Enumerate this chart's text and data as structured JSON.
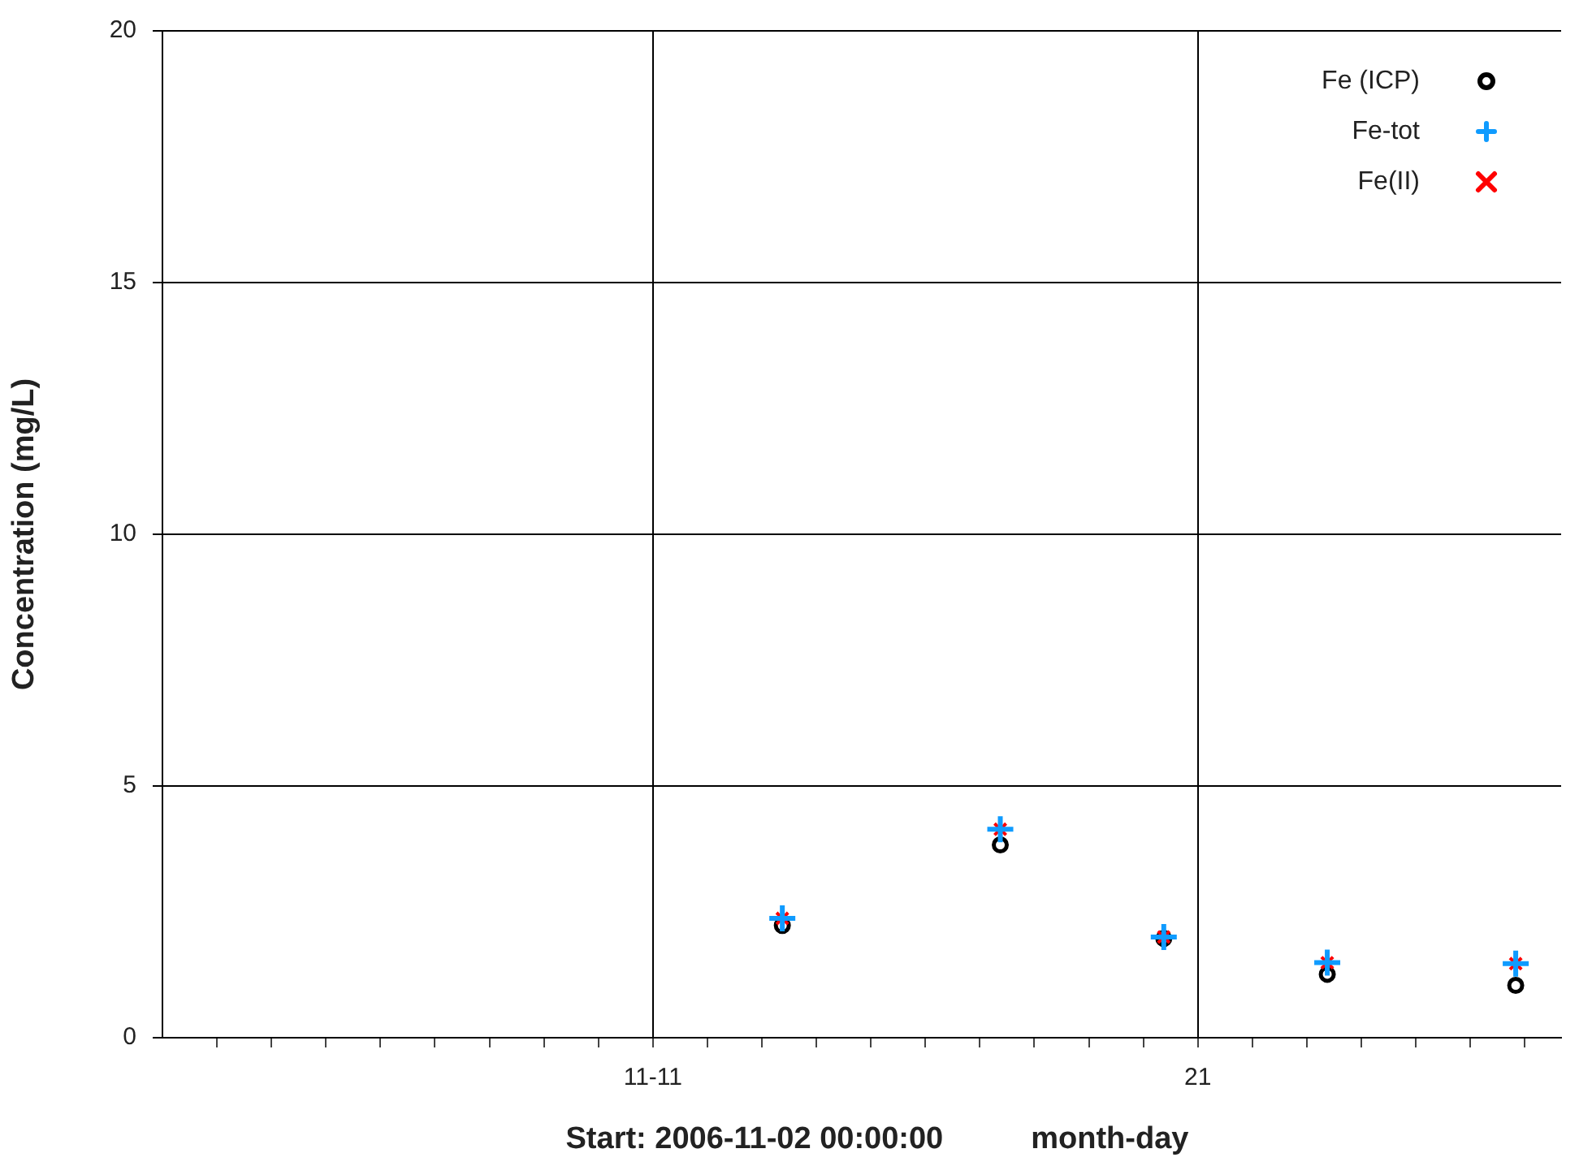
{
  "chart_data": {
    "type": "scatter",
    "xlabel": "month-day",
    "ylabel": "Concentration (mg/L)",
    "annotations": [
      "Start: 2006-11-02 00:00:00"
    ],
    "x": [
      "2006-11-13T09:00",
      "2006-11-17T09:00",
      "2006-11-20T09:00",
      "2006-11-23T09:00",
      "2006-11-26T20:00"
    ],
    "series": [
      {
        "name": "Fe (ICP)",
        "color": "#000000",
        "marker": "circle",
        "values": [
          2.23,
          3.83,
          1.97,
          1.26,
          1.04
        ]
      },
      {
        "name": "Fe-tot",
        "color": "#0f9bff",
        "marker": "cross",
        "values": [
          2.37,
          4.14,
          2.0,
          1.49,
          1.47
        ]
      },
      {
        "name": "Fe(II)",
        "color": "#ff0000",
        "marker": "x",
        "values": [
          2.37,
          4.14,
          2.0,
          1.49,
          1.47
        ]
      }
    ],
    "xlim": [
      "2006-11-02",
      "2006-11-27T16:00"
    ],
    "xticks": [
      {
        "value": "2006-11-03",
        "label": null
      },
      {
        "value": "2006-11-04",
        "label": null
      },
      {
        "value": "2006-11-05",
        "label": null
      },
      {
        "value": "2006-11-06",
        "label": null
      },
      {
        "value": "2006-11-07",
        "label": null
      },
      {
        "value": "2006-11-08",
        "label": null
      },
      {
        "value": "2006-11-09",
        "label": null
      },
      {
        "value": "2006-11-10",
        "label": null
      },
      {
        "value": "2006-11-11",
        "label": "11-11"
      },
      {
        "value": "2006-11-12",
        "label": null
      },
      {
        "value": "2006-11-13",
        "label": null
      },
      {
        "value": "2006-11-14",
        "label": null
      },
      {
        "value": "2006-11-15",
        "label": null
      },
      {
        "value": "2006-11-16",
        "label": null
      },
      {
        "value": "2006-11-17",
        "label": null
      },
      {
        "value": "2006-11-18",
        "label": null
      },
      {
        "value": "2006-11-19",
        "label": null
      },
      {
        "value": "2006-11-20",
        "label": null
      },
      {
        "value": "2006-11-21",
        "label": "21"
      },
      {
        "value": "2006-11-22",
        "label": null
      },
      {
        "value": "2006-11-23",
        "label": null
      },
      {
        "value": "2006-11-24",
        "label": null
      },
      {
        "value": "2006-11-25",
        "label": null
      },
      {
        "value": "2006-11-26",
        "label": null
      },
      {
        "value": "2006-11-27",
        "label": null
      }
    ],
    "ylim": [
      0,
      20
    ],
    "yticks": [
      0,
      5,
      10,
      15,
      20
    ],
    "grid": true,
    "legend": "top right"
  }
}
